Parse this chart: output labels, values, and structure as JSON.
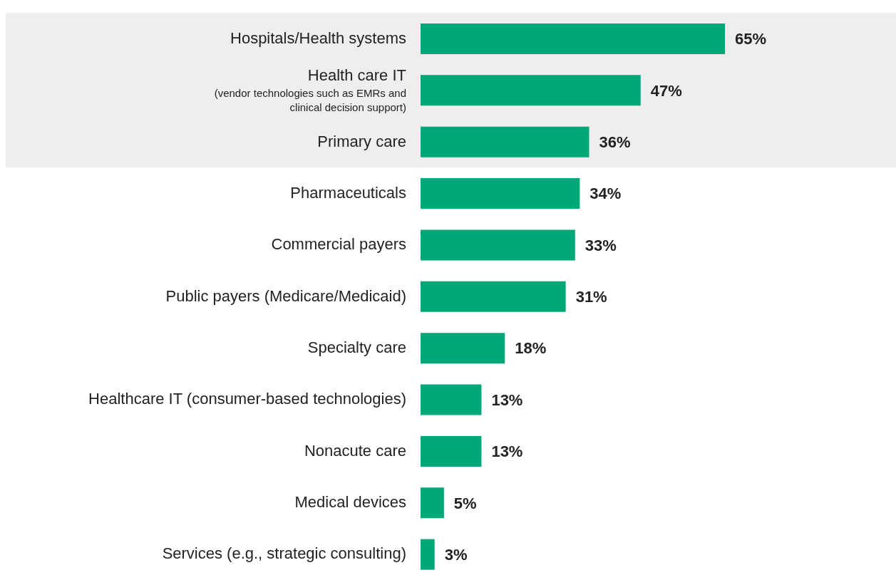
{
  "chart_data": {
    "type": "bar",
    "orientation": "horizontal",
    "categories": [
      "Hospitals/Health systems",
      "Health care IT\n(vendor technologies such as EMRs and\nclinical decision support)",
      "Primary care",
      "Pharmaceuticals",
      "Commercial payers",
      "Public payers (Medicare/Medicaid)",
      "Specialty care",
      "Healthcare IT (consumer-based technologies)",
      "Nonacute care",
      "Medical devices",
      "Services (e.g., strategic consulting)"
    ],
    "values": [
      65,
      47,
      36,
      34,
      33,
      31,
      18,
      13,
      13,
      5,
      3
    ],
    "value_labels": [
      "65%",
      "47%",
      "36%",
      "34%",
      "33%",
      "31%",
      "18%",
      "13%",
      "13%",
      "5%",
      "3%"
    ],
    "color": "#00a878",
    "bands": [
      {
        "axis": "y",
        "from": "Hospitals/Health systems",
        "to": "Primary care",
        "color": "#eeeeee"
      }
    ],
    "grid": false,
    "legend": false
  }
}
